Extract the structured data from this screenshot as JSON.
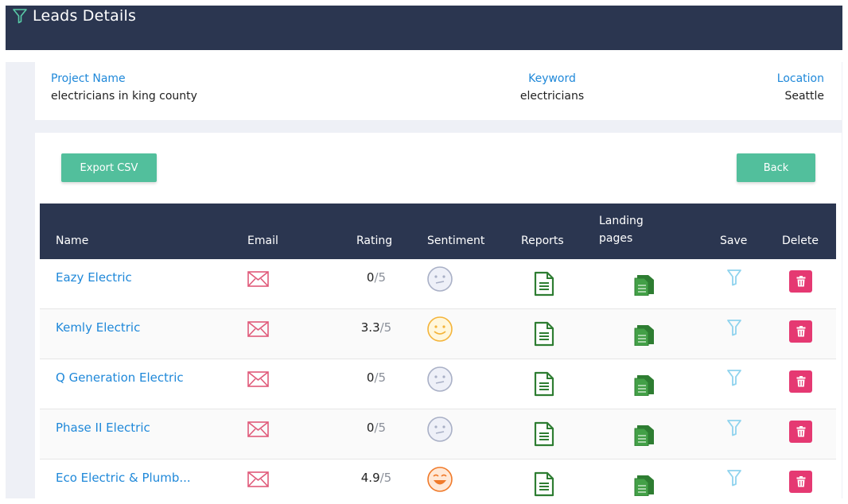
{
  "header": {
    "title": "Leads Details",
    "icon": "filter-icon"
  },
  "project": {
    "project_name_label": "Project Name",
    "project_name_value": "electricians in king county",
    "keyword_label": "Keyword",
    "keyword_value": "electricians",
    "location_label": "Location",
    "location_value": "Seattle"
  },
  "actions": {
    "export_label": "Export CSV",
    "back_label": "Back"
  },
  "table": {
    "columns": {
      "name": "Name",
      "email": "Email",
      "rating": "Rating",
      "sentiment": "Sentiment",
      "reports": "Reports",
      "landing_line1": "Landing",
      "landing_line2": "pages",
      "save": "Save",
      "delete": "Delete"
    },
    "rows": [
      {
        "name": "Eazy Electric",
        "rating": "0",
        "out_of": "/5",
        "sentiment": "neutral"
      },
      {
        "name": "Kemly Electric",
        "rating": "3.3",
        "out_of": "/5",
        "sentiment": "happy"
      },
      {
        "name": "Q Generation Electric",
        "rating": "0",
        "out_of": "/5",
        "sentiment": "neutral"
      },
      {
        "name": "Phase II Electric",
        "rating": "0",
        "out_of": "/5",
        "sentiment": "neutral"
      },
      {
        "name": "Eco Electric & Plumb...",
        "rating": "4.9",
        "out_of": "/5",
        "sentiment": "very-happy"
      }
    ]
  },
  "colors": {
    "header_bg": "#2b3650",
    "link": "#1f88d9",
    "button": "#52bf9c",
    "delete": "#e53972",
    "email_icon": "#e05a7a",
    "doc_icon": "#2e7d32",
    "save_icon": "#8fd3ee"
  }
}
